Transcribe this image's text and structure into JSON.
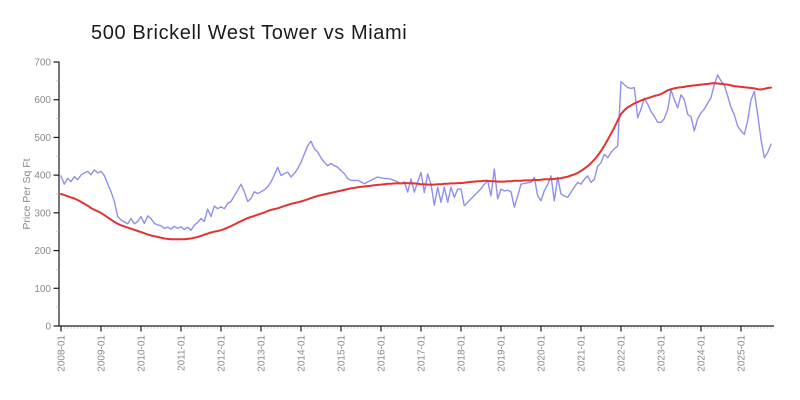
{
  "title": "500 Brickell West Tower vs Miami",
  "y_axis": {
    "label": "Price Per Sq Ft",
    "tick_values": [
      0,
      100,
      200,
      300,
      400,
      500,
      600,
      700
    ],
    "minor_step": 50,
    "range": [
      0,
      700
    ]
  },
  "x_axis": {
    "tick_labels": [
      "2008-01",
      "2009-01",
      "2010-01",
      "2011-01",
      "2012-01",
      "2013-01",
      "2014-01",
      "2015-01",
      "2016-01",
      "2017-01",
      "2018-01",
      "2019-01",
      "2020-01",
      "2021-01",
      "2022-01",
      "2023-01",
      "2024-01",
      "2025-01"
    ],
    "minor_ticks": "monthly"
  },
  "colors": {
    "tower_line": "#8f8fee",
    "miami_line": "#e23232",
    "axis": "#1a1a1a",
    "tick_label": "#8a8a8a",
    "minor_tick": "#c8c8c8"
  },
  "chart_data": {
    "type": "line",
    "title": "500 Brickell West Tower vs Miami",
    "ylabel": "Price Per Sq Ft",
    "xlabel": "",
    "ylim": [
      0,
      700
    ],
    "x_start": "2008-01",
    "x_end": "2025-10",
    "interval": "monthly",
    "grid": false,
    "legend": "none",
    "series": [
      {
        "name": "500 Brickell West Tower",
        "color": "#8f8fee",
        "width": 1.4,
        "values": [
          398,
          376,
          392,
          383,
          396,
          388,
          400,
          406,
          410,
          401,
          414,
          406,
          410,
          399,
          377,
          356,
          331,
          290,
          281,
          276,
          271,
          285,
          271,
          277,
          290,
          272,
          292,
          285,
          272,
          268,
          266,
          259,
          262,
          257,
          264,
          259,
          263,
          256,
          262,
          254,
          267,
          275,
          285,
          277,
          310,
          290,
          318,
          311,
          316,
          311,
          325,
          330,
          345,
          360,
          376,
          356,
          330,
          338,
          356,
          351,
          356,
          361,
          369,
          382,
          400,
          421,
          399,
          404,
          408,
          395,
          404,
          417,
          434,
          456,
          478,
          490,
          470,
          461,
          446,
          434,
          425,
          431,
          425,
          421,
          412,
          404,
          391,
          386,
          386,
          386,
          382,
          377,
          382,
          386,
          391,
          395,
          393,
          391,
          391,
          389,
          386,
          382,
          377,
          382,
          355,
          390,
          355,
          382,
          407,
          354,
          403,
          376,
          320,
          368,
          328,
          368,
          328,
          368,
          341,
          363,
          363,
          319,
          328,
          337,
          346,
          355,
          364,
          376,
          385,
          345,
          416,
          337,
          363,
          358,
          360,
          356,
          315,
          345,
          376,
          378,
          380,
          381,
          394,
          345,
          332,
          359,
          375,
          398,
          332,
          394,
          350,
          345,
          341,
          355,
          368,
          381,
          376,
          389,
          398,
          381,
          389,
          424,
          433,
          455,
          446,
          460,
          470,
          477,
          648,
          640,
          632,
          630,
          632,
          552,
          575,
          604,
          588,
          569,
          556,
          540,
          540,
          550,
          574,
          626,
          600,
          578,
          613,
          600,
          561,
          555,
          517,
          550,
          565,
          575,
          591,
          605,
          640,
          666,
          650,
          639,
          610,
          580,
          560,
          530,
          517,
          508,
          545,
          600,
          622,
          560,
          495,
          446,
          460,
          482
        ]
      },
      {
        "name": "Miami",
        "color": "#e23232",
        "width": 2,
        "values": [
          350,
          347,
          344,
          341,
          338,
          334,
          329,
          324,
          319,
          313,
          308,
          304,
          300,
          294,
          288,
          282,
          276,
          271,
          267,
          264,
          261,
          258,
          255,
          252,
          249,
          246,
          243,
          240,
          238,
          236,
          234,
          232,
          231,
          230,
          230,
          230,
          230,
          230,
          231,
          232,
          234,
          236,
          239,
          242,
          245,
          248,
          250,
          252,
          254,
          257,
          261,
          265,
          269,
          274,
          278,
          282,
          286,
          289,
          292,
          295,
          298,
          301,
          305,
          308,
          310,
          312,
          315,
          318,
          321,
          324,
          326,
          328,
          330,
          333,
          336,
          339,
          342,
          345,
          347,
          349,
          351,
          353,
          355,
          357,
          359,
          361,
          363,
          365,
          366,
          368,
          369,
          370,
          371,
          372,
          373,
          374,
          375,
          376,
          377,
          377,
          378,
          378,
          378,
          379,
          379,
          378,
          378,
          377,
          376,
          376,
          375,
          375,
          375,
          376,
          376,
          377,
          377,
          378,
          378,
          379,
          379,
          380,
          381,
          382,
          383,
          384,
          384,
          385,
          385,
          384,
          384,
          383,
          383,
          383,
          384,
          384,
          385,
          385,
          385,
          386,
          386,
          386,
          387,
          387,
          388,
          389,
          389,
          389,
          390,
          391,
          392,
          394,
          396,
          399,
          402,
          406,
          411,
          417,
          424,
          432,
          441,
          452,
          464,
          478,
          494,
          510,
          526,
          545,
          562,
          572,
          580,
          585,
          590,
          594,
          598,
          601,
          604,
          607,
          610,
          612,
          615,
          620,
          625,
          628,
          630,
          632,
          633,
          634,
          636,
          637,
          638,
          639,
          640,
          641,
          642,
          643,
          644,
          643,
          642,
          641,
          640,
          638,
          636,
          635,
          634,
          633,
          632,
          631,
          630,
          628,
          627,
          629,
          631,
          632
        ]
      }
    ]
  }
}
